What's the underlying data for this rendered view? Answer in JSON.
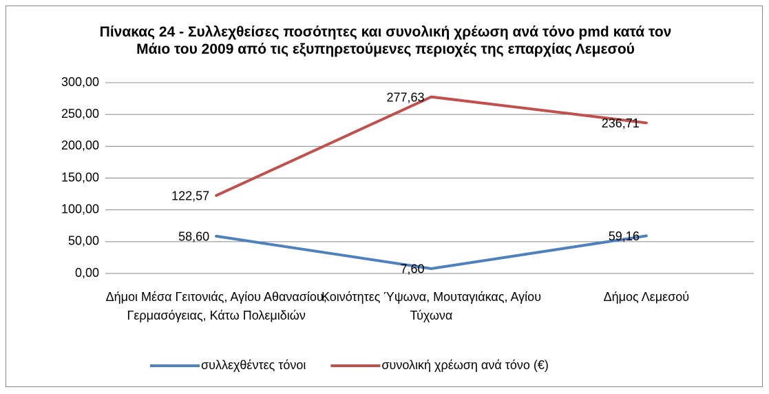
{
  "chart_data": {
    "type": "line",
    "title": "Πίνακας 24 - Συλλεχθείσες ποσότητες και συνολική χρέωση ανά τόνο pmd κατά τον Μάιο του 2009 από τις εξυπηρετούμενες περιοχές της επαρχίας Λεμεσού",
    "categories": [
      "Δήμοι Μέσα Γειτονιάς, Αγίου Αθανασίου, Γερμασόγειας, Κάτω Πολεμιδιών",
      "Κοινότητες Ύψωνα, Μουταγιάκας, Αγίου Τύχωνα",
      "Δήμος Λεμεσού"
    ],
    "series": [
      {
        "name": "συλλεχθέντες τόνοι",
        "color": "#4f81bd",
        "values": [
          58.6,
          7.6,
          59.16
        ],
        "value_labels": [
          "58,60",
          "7,60",
          "59,16"
        ]
      },
      {
        "name": "συνολική χρέωση ανά τόνο (€)",
        "color": "#c0504d",
        "values": [
          122.57,
          277.63,
          236.71
        ],
        "value_labels": [
          "122,57",
          "277,63",
          "236,71"
        ]
      }
    ],
    "ylim": [
      0,
      300
    ],
    "yticks": [
      {
        "value": 0,
        "label": "0,00"
      },
      {
        "value": 50,
        "label": "50,00"
      },
      {
        "value": 100,
        "label": "100,00"
      },
      {
        "value": 150,
        "label": "150,00"
      },
      {
        "value": 200,
        "label": "200,00"
      },
      {
        "value": 250,
        "label": "250,00"
      },
      {
        "value": 300,
        "label": "300,00"
      }
    ],
    "grid": true,
    "legend": "bottom"
  }
}
